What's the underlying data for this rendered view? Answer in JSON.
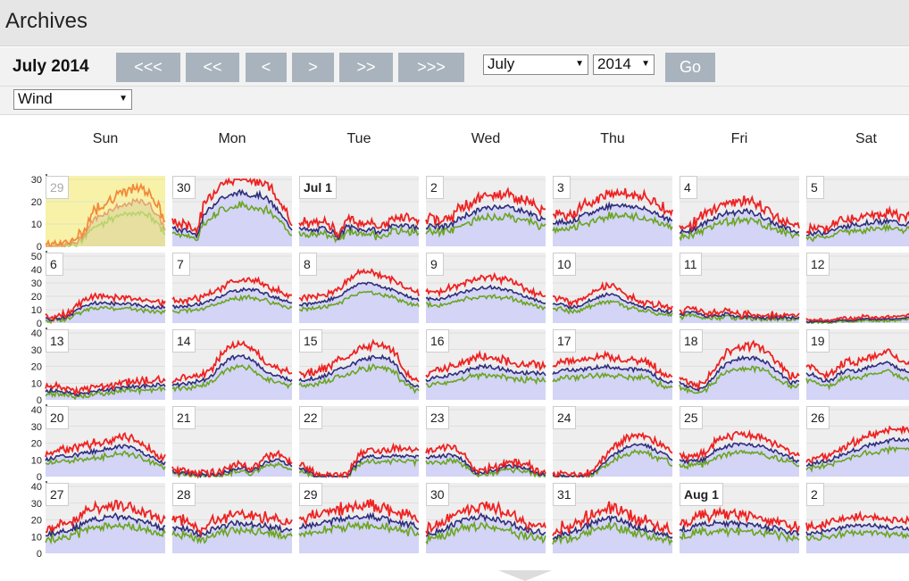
{
  "app": {
    "title": "Archives"
  },
  "nav": {
    "month_title": "July 2014",
    "buttons": [
      "<<<",
      "<<",
      "<",
      ">",
      ">>",
      ">>>"
    ],
    "month_select": "July",
    "year_select": "2014",
    "go_label": "Go"
  },
  "filter": {
    "selected": "Wind"
  },
  "calendar": {
    "weekdays": [
      "Sun",
      "Mon",
      "Tue",
      "Wed",
      "Thu",
      "Fri",
      "Sat"
    ],
    "colors": {
      "high": "#ee2222",
      "mid": "#2e2e7a",
      "low": "#6aa51f",
      "fill": "#d4d4f7",
      "cell_bg": "#eeeeee",
      "grid": "#d0d0d0",
      "selected_bg": "#f7f2a8",
      "selected_high": "#f28a3a",
      "selected_mid": "#e8a070",
      "selected_low": "#b6d36a"
    },
    "weeks": [
      {
        "ymax": 30,
        "ticks": [
          "30",
          "20",
          "10",
          "0"
        ],
        "days": [
          {
            "label": "29",
            "style": "faded",
            "selected": true,
            "level": [
              0,
              0,
              0,
              1,
              2,
              6,
              12,
              14,
              16,
              18,
              18,
              20,
              20,
              19,
              14,
              8
            ],
            "noise": 2
          },
          {
            "label": "30",
            "style": "",
            "level": [
              8,
              7,
              7,
              5,
              14,
              18,
              22,
              22,
              24,
              24,
              23,
              23,
              21,
              17,
              12,
              8
            ],
            "noise": 2
          },
          {
            "label": "Jul 1",
            "style": "bold",
            "level": [
              9,
              7,
              7,
              8,
              7,
              4,
              9,
              8,
              7,
              8,
              6,
              8,
              9,
              10,
              9,
              8
            ],
            "noise": 2
          },
          {
            "label": "2",
            "style": "",
            "level": [
              9,
              9,
              9,
              9,
              12,
              14,
              15,
              17,
              17,
              18,
              18,
              17,
              16,
              15,
              13,
              11
            ],
            "noise": 2
          },
          {
            "label": "3",
            "style": "",
            "level": [
              11,
              11,
              11,
              12,
              14,
              15,
              17,
              18,
              19,
              18,
              18,
              17,
              16,
              15,
              13,
              11
            ],
            "noise": 2
          },
          {
            "label": "4",
            "style": "",
            "level": [
              6,
              7,
              8,
              10,
              12,
              14,
              15,
              15,
              16,
              15,
              14,
              12,
              10,
              9,
              7,
              6
            ],
            "noise": 2
          },
          {
            "label": "5",
            "style": "",
            "level": [
              6,
              6,
              6,
              7,
              8,
              9,
              10,
              10,
              11,
              11,
              11,
              11,
              10,
              10,
              10,
              9
            ],
            "noise": 2
          }
        ]
      },
      {
        "ymax": 50,
        "ticks": [
          "50",
          "40",
          "30",
          "20",
          "10",
          "0"
        ],
        "days": [
          {
            "label": "6",
            "style": "",
            "level": [
              3,
              3,
              4,
              5,
              10,
              13,
              15,
              15,
              15,
              14,
              15,
              14,
              13,
              12,
              12,
              12
            ],
            "noise": 2
          },
          {
            "label": "7",
            "style": "",
            "level": [
              12,
              12,
              13,
              14,
              15,
              17,
              20,
              23,
              24,
              25,
              25,
              24,
              21,
              19,
              17,
              16
            ],
            "noise": 2
          },
          {
            "label": "8",
            "style": "",
            "level": [
              14,
              14,
              15,
              16,
              18,
              20,
              24,
              28,
              30,
              30,
              28,
              26,
              24,
              22,
              19,
              17
            ],
            "noise": 2
          },
          {
            "label": "9",
            "style": "",
            "level": [
              18,
              18,
              18,
              20,
              22,
              24,
              25,
              26,
              27,
              26,
              25,
              23,
              21,
              19,
              17,
              15
            ],
            "noise": 2
          },
          {
            "label": "10",
            "style": "",
            "level": [
              14,
              14,
              12,
              12,
              15,
              18,
              20,
              22,
              20,
              17,
              14,
              12,
              11,
              10,
              9,
              8
            ],
            "noise": 2
          },
          {
            "label": "11",
            "style": "",
            "level": [
              6,
              8,
              8,
              6,
              5,
              6,
              7,
              5,
              4,
              5,
              4,
              4,
              4,
              4,
              4,
              4
            ],
            "noise": 2
          },
          {
            "label": "12",
            "style": "",
            "level": [
              1,
              1,
              1,
              1,
              2,
              2,
              2,
              3,
              3,
              3,
              3,
              3,
              4,
              4,
              5,
              6
            ],
            "noise": 1
          }
        ]
      },
      {
        "ymax": 40,
        "ticks": [
          "40",
          "30",
          "20",
          "10",
          "0"
        ],
        "days": [
          {
            "label": "13",
            "style": "",
            "level": [
              5,
              6,
              5,
              4,
              3,
              4,
              5,
              6,
              6,
              7,
              8,
              8,
              8,
              8,
              9,
              9
            ],
            "noise": 2
          },
          {
            "label": "14",
            "style": "",
            "level": [
              9,
              9,
              10,
              11,
              12,
              15,
              20,
              24,
              26,
              26,
              24,
              20,
              16,
              14,
              13,
              12
            ],
            "noise": 2
          },
          {
            "label": "15",
            "style": "",
            "level": [
              12,
              12,
              13,
              14,
              16,
              18,
              20,
              22,
              24,
              25,
              26,
              25,
              22,
              14,
              9,
              8
            ],
            "noise": 2
          },
          {
            "label": "16",
            "style": "",
            "level": [
              12,
              13,
              14,
              15,
              16,
              17,
              19,
              20,
              20,
              19,
              18,
              17,
              16,
              16,
              16,
              15
            ],
            "noise": 2
          },
          {
            "label": "17",
            "style": "",
            "level": [
              16,
              17,
              18,
              18,
              18,
              19,
              20,
              20,
              19,
              19,
              18,
              18,
              17,
              14,
              11,
              10
            ],
            "noise": 2
          },
          {
            "label": "18",
            "style": "",
            "level": [
              10,
              8,
              6,
              7,
              12,
              18,
              22,
              24,
              25,
              25,
              24,
              22,
              18,
              14,
              10,
              12
            ],
            "noise": 2
          },
          {
            "label": "19",
            "style": "",
            "level": [
              15,
              15,
              12,
              11,
              15,
              18,
              17,
              18,
              20,
              21,
              22,
              20,
              18,
              17,
              16,
              16
            ],
            "noise": 2
          }
        ]
      },
      {
        "ymax": 40,
        "ticks": [
          "40",
          "30",
          "20",
          "10",
          "0"
        ],
        "days": [
          {
            "label": "20",
            "style": "",
            "level": [
              10,
              11,
              12,
              12,
              13,
              14,
              15,
              16,
              17,
              18,
              18,
              17,
              15,
              12,
              10,
              8
            ],
            "noise": 2
          },
          {
            "label": "21",
            "style": "",
            "level": [
              3,
              2,
              2,
              1,
              1,
              1,
              2,
              3,
              5,
              5,
              3,
              6,
              9,
              10,
              8,
              7
            ],
            "noise": 2
          },
          {
            "label": "22",
            "style": "",
            "level": [
              5,
              3,
              0,
              0,
              0,
              0,
              0,
              6,
              11,
              12,
              12,
              12,
              12,
              12,
              12,
              12
            ],
            "noise": 2
          },
          {
            "label": "23",
            "style": "",
            "level": [
              11,
              12,
              12,
              13,
              12,
              8,
              3,
              2,
              3,
              4,
              6,
              6,
              6,
              4,
              2,
              1
            ],
            "noise": 2
          },
          {
            "label": "24",
            "style": "",
            "level": [
              0,
              0,
              0,
              0,
              0,
              2,
              6,
              10,
              14,
              17,
              19,
              20,
              18,
              15,
              13,
              10
            ],
            "noise": 2
          },
          {
            "label": "25",
            "style": "",
            "level": [
              10,
              9,
              9,
              10,
              14,
              17,
              18,
              19,
              19,
              19,
              18,
              17,
              15,
              13,
              11,
              9
            ],
            "noise": 2
          },
          {
            "label": "26",
            "style": "",
            "level": [
              7,
              8,
              9,
              10,
              12,
              14,
              16,
              17,
              19,
              20,
              21,
              22,
              22,
              21,
              19,
              18
            ],
            "noise": 2
          }
        ]
      },
      {
        "ymax": 40,
        "ticks": [
          "40",
          "30",
          "20",
          "10",
          "0"
        ],
        "days": [
          {
            "label": "27",
            "style": "",
            "level": [
              11,
              12,
              13,
              14,
              16,
              18,
              20,
              21,
              22,
              22,
              21,
              20,
              19,
              18,
              16,
              15
            ],
            "noise": 3
          },
          {
            "label": "28",
            "style": "",
            "level": [
              15,
              15,
              14,
              12,
              11,
              14,
              16,
              17,
              18,
              18,
              17,
              17,
              16,
              15,
              14,
              13
            ],
            "noise": 3
          },
          {
            "label": "29",
            "style": "",
            "level": [
              16,
              16,
              17,
              18,
              19,
              20,
              21,
              22,
              22,
              22,
              21,
              20,
              19,
              18,
              17,
              16
            ],
            "noise": 3
          },
          {
            "label": "30",
            "style": "",
            "level": [
              12,
              12,
              14,
              16,
              18,
              20,
              21,
              22,
              21,
              20,
              18,
              17,
              15,
              14,
              13,
              12
            ],
            "noise": 3
          },
          {
            "label": "31",
            "style": "",
            "level": [
              10,
              11,
              12,
              14,
              16,
              18,
              20,
              21,
              20,
              19,
              17,
              15,
              14,
              13,
              11,
              10
            ],
            "noise": 3
          },
          {
            "label": "Aug 1",
            "style": "bold",
            "level": [
              14,
              15,
              16,
              17,
              18,
              18,
              18,
              18,
              17,
              17,
              16,
              15,
              15,
              14,
              13,
              12
            ],
            "noise": 3
          },
          {
            "label": "2",
            "style": "",
            "level": [
              12,
              12,
              13,
              14,
              15,
              16,
              17,
              17,
              17,
              16,
              16,
              15,
              15,
              14,
              13,
              13
            ],
            "noise": 2
          }
        ]
      }
    ]
  }
}
